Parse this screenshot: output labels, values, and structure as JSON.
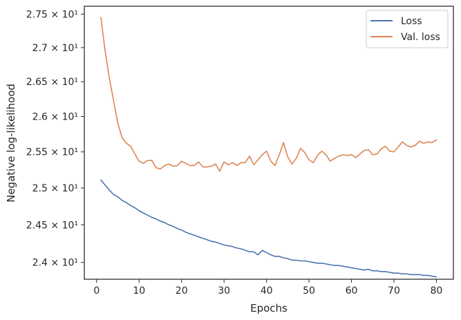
{
  "chart_data": {
    "type": "line",
    "xlabel": "Epochs",
    "ylabel": "Negative log-likelihood",
    "xlim": [
      -2.9,
      84.0
    ],
    "ylim": [
      23.78,
      27.62
    ],
    "y_scale": "log",
    "grid": false,
    "legend_position": "top-right",
    "x_ticks": [
      0,
      10,
      20,
      30,
      40,
      50,
      60,
      70,
      80
    ],
    "x_tick_labels": [
      "0",
      "10",
      "20",
      "30",
      "40",
      "50",
      "60",
      "70",
      "80"
    ],
    "y_ticks": [
      24.0,
      24.5,
      25.0,
      25.5,
      26.0,
      26.5,
      27.0,
      27.5
    ],
    "y_tick_labels": [
      "2.4 × 10¹",
      "2.45 × 10¹",
      "2.5 × 10¹",
      "2.55 × 10¹",
      "2.6 × 10¹",
      "2.65 × 10¹",
      "2.7 × 10¹",
      "2.75 × 10¹"
    ],
    "series": [
      {
        "name": "Loss",
        "color": "#4c72b0",
        "x": [
          1,
          2,
          3,
          4,
          5,
          6,
          7,
          8,
          9,
          10,
          11,
          12,
          13,
          14,
          15,
          16,
          17,
          18,
          19,
          20,
          21,
          22,
          23,
          24,
          25,
          26,
          27,
          28,
          29,
          30,
          31,
          32,
          33,
          34,
          35,
          36,
          37,
          38,
          39,
          40,
          41,
          42,
          43,
          44,
          45,
          46,
          47,
          48,
          49,
          50,
          51,
          52,
          53,
          54,
          55,
          56,
          57,
          58,
          59,
          60,
          61,
          62,
          63,
          64,
          65,
          66,
          67,
          68,
          69,
          70,
          71,
          72,
          73,
          74,
          75,
          76,
          77,
          78,
          79,
          80
        ],
        "values": [
          25.11,
          25.04,
          24.97,
          24.91,
          24.88,
          24.83,
          24.8,
          24.76,
          24.73,
          24.69,
          24.66,
          24.63,
          24.6,
          24.58,
          24.55,
          24.53,
          24.5,
          24.48,
          24.45,
          24.43,
          24.4,
          24.38,
          24.36,
          24.34,
          24.32,
          24.3,
          24.28,
          24.27,
          24.25,
          24.23,
          24.22,
          24.21,
          24.19,
          24.18,
          24.16,
          24.14,
          24.14,
          24.1,
          24.16,
          24.13,
          24.1,
          24.08,
          24.08,
          24.06,
          24.05,
          24.03,
          24.03,
          24.02,
          24.02,
          24.01,
          24.0,
          23.99,
          23.99,
          23.98,
          23.97,
          23.96,
          23.96,
          23.95,
          23.94,
          23.93,
          23.92,
          23.91,
          23.9,
          23.91,
          23.89,
          23.89,
          23.88,
          23.88,
          23.87,
          23.86,
          23.86,
          23.85,
          23.85,
          23.84,
          23.84,
          23.84,
          23.83,
          23.83,
          23.82,
          23.81
        ]
      },
      {
        "name": "Val. loss",
        "color": "#dd8452",
        "x": [
          1,
          2,
          3,
          4,
          5,
          6,
          7,
          8,
          9,
          10,
          11,
          12,
          13,
          14,
          15,
          16,
          17,
          18,
          19,
          20,
          21,
          22,
          23,
          24,
          25,
          26,
          27,
          28,
          29,
          30,
          31,
          32,
          33,
          34,
          35,
          36,
          37,
          38,
          39,
          40,
          41,
          42,
          43,
          44,
          45,
          46,
          47,
          48,
          49,
          50,
          51,
          52,
          53,
          54,
          55,
          56,
          57,
          58,
          59,
          60,
          61,
          62,
          63,
          64,
          65,
          66,
          67,
          68,
          69,
          70,
          71,
          72,
          73,
          74,
          75,
          76,
          77,
          78,
          79,
          80
        ],
        "values": [
          27.45,
          26.95,
          26.55,
          26.22,
          25.9,
          25.7,
          25.62,
          25.58,
          25.47,
          25.37,
          25.34,
          25.38,
          25.38,
          25.28,
          25.26,
          25.31,
          25.33,
          25.3,
          25.31,
          25.37,
          25.34,
          25.31,
          25.31,
          25.36,
          25.29,
          25.29,
          25.3,
          25.33,
          25.23,
          25.36,
          25.32,
          25.35,
          25.31,
          25.35,
          25.35,
          25.44,
          25.32,
          25.39,
          25.46,
          25.51,
          25.37,
          25.31,
          25.46,
          25.63,
          25.43,
          25.33,
          25.41,
          25.55,
          25.49,
          25.39,
          25.35,
          25.45,
          25.51,
          25.46,
          25.37,
          25.41,
          25.44,
          25.46,
          25.45,
          25.46,
          25.42,
          25.47,
          25.52,
          25.53,
          25.46,
          25.47,
          25.54,
          25.58,
          25.51,
          25.5,
          25.57,
          25.64,
          25.59,
          25.57,
          25.59,
          25.65,
          25.62,
          25.64,
          25.63,
          25.67
        ]
      }
    ]
  }
}
